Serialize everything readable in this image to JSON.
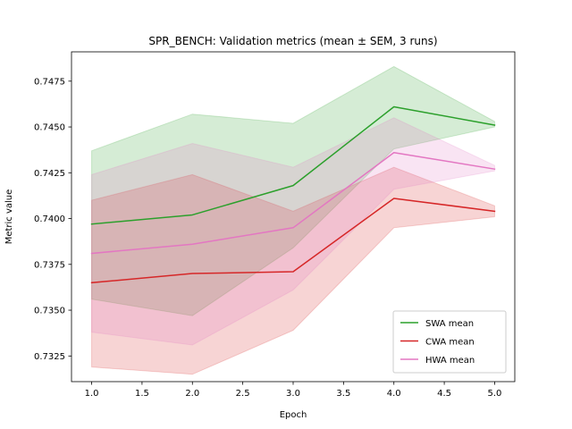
{
  "chart_data": {
    "type": "line",
    "title": "SPR_BENCH: Validation metrics (mean ± SEM, 3 runs)",
    "xlabel": "Epoch",
    "ylabel": "Metric value",
    "xlim": [
      0.8,
      5.2
    ],
    "ylim": [
      0.7311,
      0.7491
    ],
    "x_ticks": [
      1.0,
      1.5,
      2.0,
      2.5,
      3.0,
      3.5,
      4.0,
      4.5,
      5.0
    ],
    "x_tick_labels": [
      "1.0",
      "1.5",
      "2.0",
      "2.5",
      "3.0",
      "3.5",
      "4.0",
      "4.5",
      "5.0"
    ],
    "y_ticks": [
      0.7325,
      0.735,
      0.7375,
      0.74,
      0.7425,
      0.745,
      0.7475
    ],
    "y_tick_labels": [
      "0.7325",
      "0.7350",
      "0.7375",
      "0.7400",
      "0.7425",
      "0.7450",
      "0.7475"
    ],
    "grid": false,
    "legend_position": "lower-right",
    "x": [
      1,
      2,
      3,
      4,
      5
    ],
    "series": [
      {
        "name": "SWA mean",
        "color": "#2ca02c",
        "values": [
          0.7397,
          0.7402,
          0.7418,
          0.7461,
          0.7451
        ],
        "lower": [
          0.7356,
          0.7347,
          0.7384,
          0.7438,
          0.745
        ],
        "upper": [
          0.7437,
          0.7457,
          0.7452,
          0.7483,
          0.7453
        ]
      },
      {
        "name": "CWA mean",
        "color": "#d62728",
        "values": [
          0.7365,
          0.737,
          0.7371,
          0.7411,
          0.7404
        ],
        "lower": [
          0.7319,
          0.7315,
          0.7339,
          0.7395,
          0.7401
        ],
        "upper": [
          0.741,
          0.7424,
          0.7404,
          0.7428,
          0.7407
        ]
      },
      {
        "name": "HWA mean",
        "color": "#e377c2",
        "values": [
          0.7381,
          0.7386,
          0.7395,
          0.7436,
          0.7427
        ],
        "lower": [
          0.7338,
          0.7331,
          0.7361,
          0.7416,
          0.7426
        ],
        "upper": [
          0.7424,
          0.7441,
          0.7428,
          0.7455,
          0.7429
        ]
      }
    ]
  }
}
